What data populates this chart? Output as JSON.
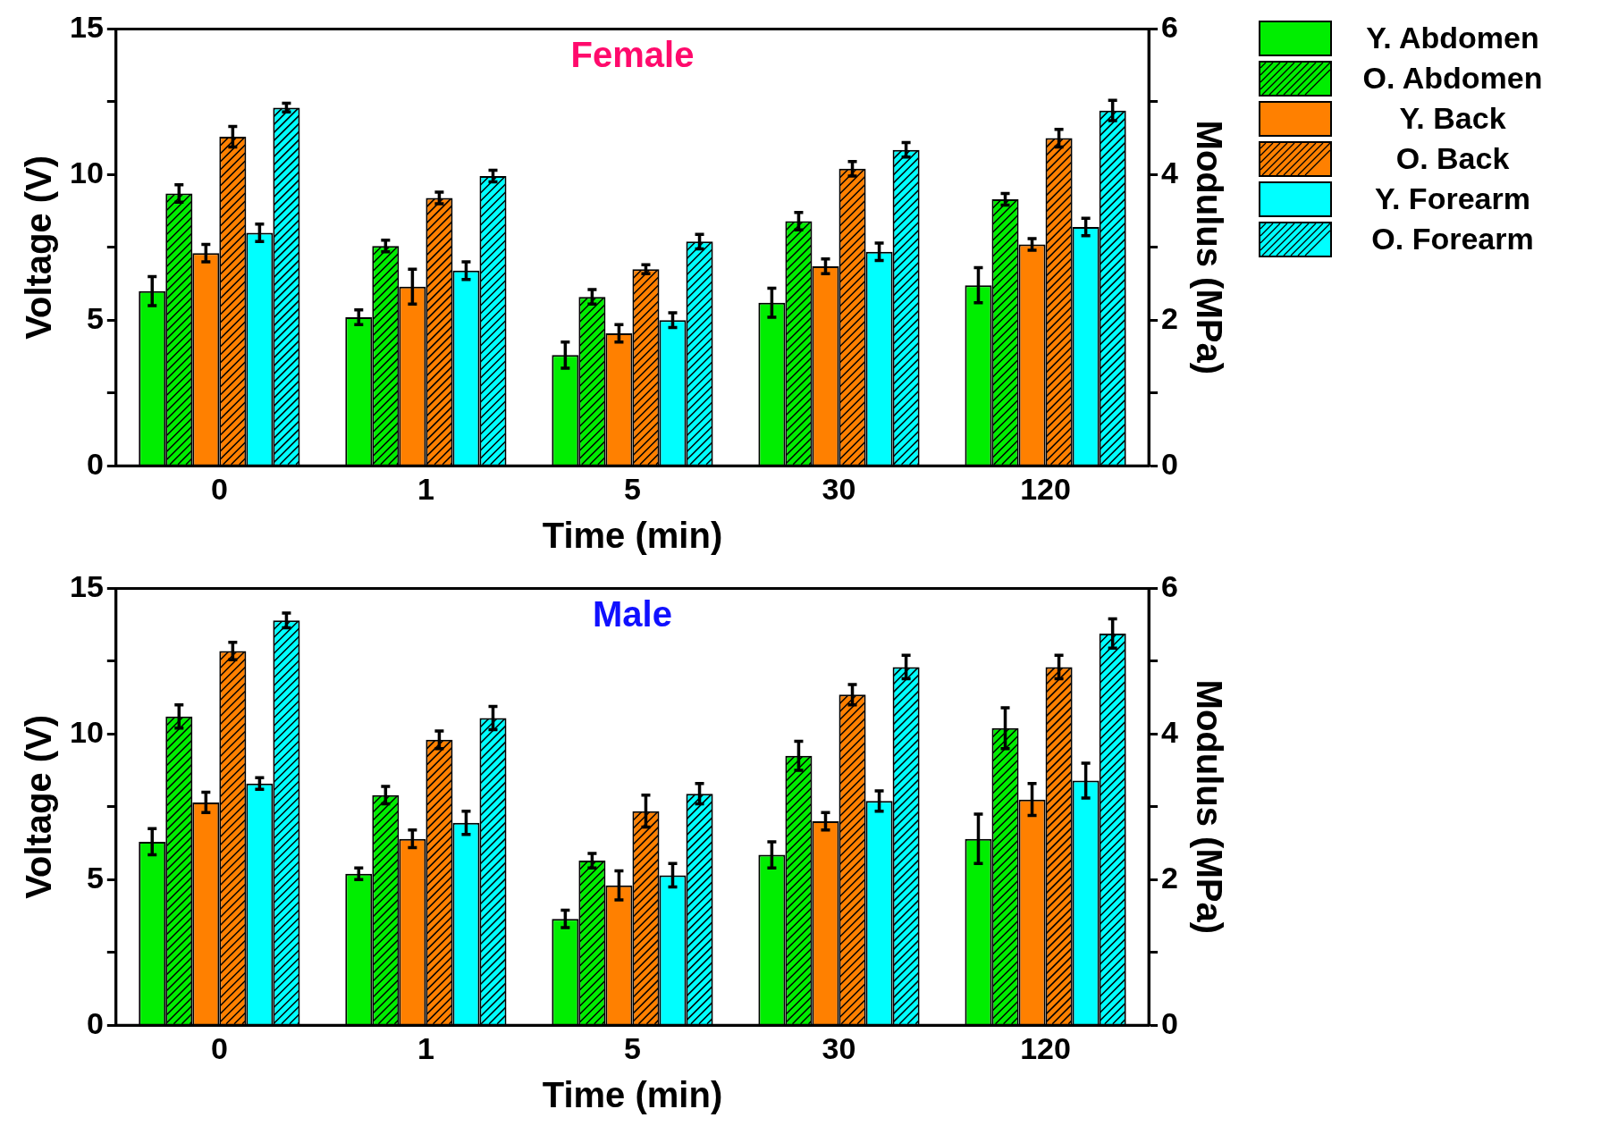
{
  "chart_data": [
    {
      "type": "bar",
      "title": "Female",
      "xlabel": "Time (min)",
      "ylabel": "Voltage (V)",
      "y2label": "Modulus (MPa)",
      "categories": [
        "0",
        "1",
        "5",
        "30",
        "120"
      ],
      "ylim": [
        0,
        15
      ],
      "yticks": [
        0,
        {
          "value": 2.5,
          "label": null
        },
        5,
        {
          "value": 7.5,
          "label": null
        },
        10,
        {
          "value": 12.5,
          "label": null
        },
        15
      ],
      "y2lim": [
        0,
        6
      ],
      "y2ticks": [
        0,
        {
          "value": 1,
          "label": null
        },
        2,
        {
          "value": 3,
          "label": null
        },
        4,
        {
          "value": 5,
          "label": null
        },
        6
      ],
      "grid": false,
      "legend": "right",
      "series": [
        {
          "name": "Y. Abdomen",
          "color": "#00ee00",
          "values": [
            6.0,
            5.1,
            3.8,
            5.6,
            6.2
          ],
          "errors": [
            0.5,
            0.25,
            0.45,
            0.5,
            0.6
          ]
        },
        {
          "name": "O. Abdomen",
          "color": "#00ee00",
          "values": [
            9.35,
            7.55,
            5.8,
            8.4,
            9.15
          ],
          "errors": [
            0.3,
            0.2,
            0.25,
            0.3,
            0.2
          ]
        },
        {
          "name": "Y. Back",
          "color": "#ff8000",
          "values": [
            7.3,
            6.15,
            4.55,
            6.85,
            7.6
          ],
          "errors": [
            0.3,
            0.6,
            0.3,
            0.25,
            0.2
          ]
        },
        {
          "name": "O. Back",
          "color": "#ff8000",
          "values": [
            11.3,
            9.2,
            6.75,
            10.2,
            11.25
          ],
          "errors": [
            0.35,
            0.2,
            0.15,
            0.25,
            0.3
          ]
        },
        {
          "name": "Y. Forearm",
          "color": "#00ffff",
          "values": [
            8.0,
            6.7,
            5.0,
            7.35,
            8.2
          ],
          "errors": [
            0.3,
            0.3,
            0.25,
            0.3,
            0.3
          ]
        },
        {
          "name": "O. Forearm",
          "color": "#00ffff",
          "values": [
            12.3,
            9.95,
            7.7,
            10.85,
            12.2
          ],
          "errors": [
            0.15,
            0.2,
            0.25,
            0.25,
            0.35
          ]
        }
      ]
    },
    {
      "type": "bar",
      "title": "Male",
      "xlabel": "Time (min)",
      "ylabel": "Voltage (V)",
      "y2label": "Modulus (MPa)",
      "categories": [
        "0",
        "1",
        "5",
        "30",
        "120"
      ],
      "ylim": [
        0,
        15
      ],
      "yticks": [
        0,
        {
          "value": 2.5,
          "label": null
        },
        5,
        {
          "value": 7.5,
          "label": null
        },
        10,
        {
          "value": 12.5,
          "label": null
        },
        15
      ],
      "y2lim": [
        0,
        6
      ],
      "y2ticks": [
        0,
        {
          "value": 1,
          "label": null
        },
        2,
        {
          "value": 3,
          "label": null
        },
        4,
        {
          "value": 5,
          "label": null
        },
        6
      ],
      "grid": false,
      "legend": false,
      "series": [
        {
          "color": "#00ee00",
          "values": [
            6.3,
            5.2,
            3.65,
            5.85,
            6.4
          ],
          "errors": [
            0.45,
            0.2,
            0.3,
            0.45,
            0.85
          ]
        },
        {
          "color": "#00ee00",
          "values": [
            10.6,
            7.9,
            5.65,
            9.25,
            10.2
          ],
          "errors": [
            0.4,
            0.3,
            0.25,
            0.5,
            0.7
          ]
        },
        {
          "color": "#ff8000",
          "values": [
            7.65,
            6.4,
            4.8,
            7.0,
            7.75
          ],
          "errors": [
            0.35,
            0.3,
            0.5,
            0.3,
            0.55
          ]
        },
        {
          "color": "#ff8000",
          "values": [
            12.85,
            9.8,
            7.35,
            11.35,
            12.3
          ],
          "errors": [
            0.3,
            0.3,
            0.55,
            0.35,
            0.4
          ]
        },
        {
          "color": "#00ffff",
          "values": [
            8.3,
            6.95,
            5.15,
            7.7,
            8.4
          ],
          "errors": [
            0.2,
            0.4,
            0.4,
            0.35,
            0.6
          ]
        },
        {
          "color": "#00ffff",
          "values": [
            13.9,
            10.55,
            7.95,
            12.3,
            13.45
          ],
          "errors": [
            0.25,
            0.4,
            0.35,
            0.4,
            0.5
          ]
        }
      ]
    }
  ]
}
